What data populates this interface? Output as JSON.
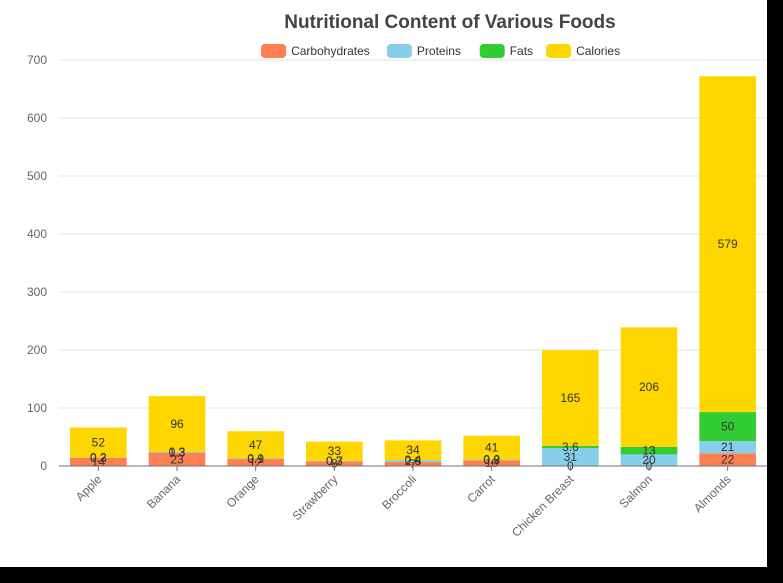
{
  "chart_data": {
    "type": "bar",
    "stacked": true,
    "title": "Nutritional Content of Various Foods",
    "categories": [
      "Apple",
      "Banana",
      "Orange",
      "Strawberry",
      "Broccoli",
      "Carrot",
      "Chicken Breast",
      "Salmon",
      "Almonds"
    ],
    "series": [
      {
        "name": "Carbohydrates",
        "color": "#FF7F50",
        "values": [
          14,
          23,
          12,
          8,
          7,
          10,
          0,
          0,
          22
        ]
      },
      {
        "name": "Proteins",
        "color": "#87CEEB",
        "values": [
          0.3,
          1.3,
          0.9,
          0.7,
          2.8,
          0.9,
          31,
          20,
          21
        ]
      },
      {
        "name": "Fats",
        "color": "#32CD32",
        "values": [
          0.2,
          0.3,
          0.1,
          0.3,
          0.4,
          0.2,
          3.6,
          13,
          50
        ]
      },
      {
        "name": "Calories",
        "color": "#FFD700",
        "values": [
          52,
          96,
          47,
          33,
          34,
          41,
          165,
          206,
          579
        ]
      }
    ],
    "ylim": [
      0,
      700
    ],
    "y_ticks": [
      0,
      100,
      200,
      300,
      400,
      500,
      600,
      700
    ],
    "grid": true,
    "legend_position": "top-center",
    "xlabel": "",
    "ylabel": ""
  }
}
